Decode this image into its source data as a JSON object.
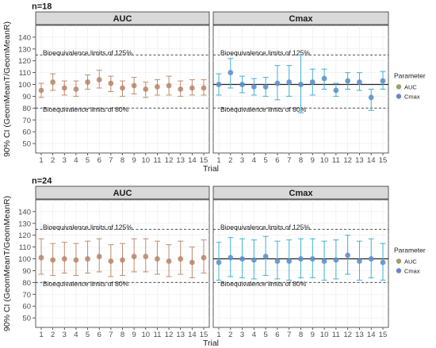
{
  "chart_data": [
    {
      "type": "scatter",
      "title": "n=18",
      "xlabel": "Trial",
      "ylabel": "90% CI (GeomMeanT/GeomMeanR)",
      "ylim": [
        42,
        150
      ],
      "yticks": [
        50,
        60,
        70,
        80,
        90,
        100,
        110,
        120,
        130,
        140
      ],
      "x": [
        1,
        2,
        3,
        4,
        5,
        6,
        7,
        8,
        9,
        10,
        11,
        12,
        13,
        14,
        15
      ],
      "reference_line": 100,
      "limits": [
        {
          "value": 125,
          "label": "Bioequivalence limits of 125%"
        },
        {
          "value": 80,
          "label": "Bioequivalence limits of 80%"
        }
      ],
      "legend": {
        "title": "Parameter",
        "position": "right"
      },
      "panels": [
        {
          "name": "AUC",
          "color": "#c08a6e",
          "points": [
            {
              "x": 1,
              "y": 95,
              "lo": 89,
              "hi": 101
            },
            {
              "x": 2,
              "y": 102,
              "lo": 95,
              "hi": 109
            },
            {
              "x": 3,
              "y": 97,
              "lo": 91,
              "hi": 103
            },
            {
              "x": 4,
              "y": 96,
              "lo": 90,
              "hi": 103
            },
            {
              "x": 5,
              "y": 102,
              "lo": 96,
              "hi": 108
            },
            {
              "x": 6,
              "y": 104,
              "lo": 97,
              "hi": 112
            },
            {
              "x": 7,
              "y": 101,
              "lo": 94,
              "hi": 107
            },
            {
              "x": 8,
              "y": 97,
              "lo": 90,
              "hi": 103
            },
            {
              "x": 9,
              "y": 99,
              "lo": 92,
              "hi": 106
            },
            {
              "x": 10,
              "y": 96,
              "lo": 89,
              "hi": 102
            },
            {
              "x": 11,
              "y": 98,
              "lo": 91,
              "hi": 104
            },
            {
              "x": 12,
              "y": 99,
              "lo": 91,
              "hi": 107
            },
            {
              "x": 13,
              "y": 96,
              "lo": 90,
              "hi": 103
            },
            {
              "x": 14,
              "y": 97,
              "lo": 91,
              "hi": 104
            },
            {
              "x": 15,
              "y": 97,
              "lo": 91,
              "hi": 104
            }
          ]
        },
        {
          "name": "Cmax",
          "color": "#3fb0d0",
          "points": [
            {
              "x": 1,
              "y": 100,
              "lo": 91,
              "hi": 109
            },
            {
              "x": 2,
              "y": 110,
              "lo": 97,
              "hi": 122
            },
            {
              "x": 3,
              "y": 100,
              "lo": 93,
              "hi": 107
            },
            {
              "x": 4,
              "y": 98,
              "lo": 91,
              "hi": 105
            },
            {
              "x": 5,
              "y": 98,
              "lo": 90,
              "hi": 106
            },
            {
              "x": 6,
              "y": 101,
              "lo": 87,
              "hi": 116
            },
            {
              "x": 7,
              "y": 102,
              "lo": 90,
              "hi": 116
            },
            {
              "x": 8,
              "y": 100,
              "lo": 76,
              "hi": 125
            },
            {
              "x": 9,
              "y": 102,
              "lo": 91,
              "hi": 113
            },
            {
              "x": 10,
              "y": 105,
              "lo": 96,
              "hi": 113
            },
            {
              "x": 11,
              "y": 95,
              "lo": 90,
              "hi": 101
            },
            {
              "x": 12,
              "y": 103,
              "lo": 96,
              "hi": 110
            },
            {
              "x": 13,
              "y": 102,
              "lo": 95,
              "hi": 110
            },
            {
              "x": 14,
              "y": 89,
              "lo": 78,
              "hi": 96
            },
            {
              "x": 15,
              "y": 103,
              "lo": 96,
              "hi": 111
            }
          ]
        }
      ]
    },
    {
      "type": "scatter",
      "title": "n=24",
      "xlabel": "Trial",
      "ylabel": "90% CI (GeomMeanT/GeomMeanR)",
      "ylim": [
        42,
        150
      ],
      "yticks": [
        50,
        60,
        70,
        80,
        90,
        100,
        110,
        120,
        130,
        140
      ],
      "x": [
        1,
        2,
        3,
        4,
        5,
        6,
        7,
        8,
        9,
        10,
        11,
        12,
        13,
        14,
        15
      ],
      "reference_line": 100,
      "limits": [
        {
          "value": 125,
          "label": "Bioequivalence limits of 125%"
        },
        {
          "value": 80,
          "label": "Bioequivalence limits of 80%"
        }
      ],
      "legend": {
        "title": "Parameter",
        "position": "right"
      },
      "panels": [
        {
          "name": "AUC",
          "color": "#c08a6e",
          "points": [
            {
              "x": 1,
              "y": 101,
              "lo": 87,
              "hi": 117
            },
            {
              "x": 2,
              "y": 99,
              "lo": 86,
              "hi": 113
            },
            {
              "x": 3,
              "y": 100,
              "lo": 88,
              "hi": 114
            },
            {
              "x": 4,
              "y": 99,
              "lo": 86,
              "hi": 113
            },
            {
              "x": 5,
              "y": 100,
              "lo": 88,
              "hi": 115
            },
            {
              "x": 6,
              "y": 102,
              "lo": 89,
              "hi": 117
            },
            {
              "x": 7,
              "y": 98,
              "lo": 85,
              "hi": 112
            },
            {
              "x": 8,
              "y": 99,
              "lo": 86,
              "hi": 113
            },
            {
              "x": 9,
              "y": 102,
              "lo": 89,
              "hi": 117
            },
            {
              "x": 10,
              "y": 102,
              "lo": 89,
              "hi": 117
            },
            {
              "x": 11,
              "y": 100,
              "lo": 87,
              "hi": 115
            },
            {
              "x": 12,
              "y": 98,
              "lo": 85,
              "hi": 112
            },
            {
              "x": 13,
              "y": 100,
              "lo": 87,
              "hi": 115
            },
            {
              "x": 14,
              "y": 97,
              "lo": 84,
              "hi": 110
            },
            {
              "x": 15,
              "y": 101,
              "lo": 88,
              "hi": 116
            }
          ]
        },
        {
          "name": "Cmax",
          "color": "#3fb0d0",
          "points": [
            {
              "x": 1,
              "y": 97,
              "lo": 82,
              "hi": 114
            },
            {
              "x": 2,
              "y": 101,
              "lo": 85,
              "hi": 118
            },
            {
              "x": 3,
              "y": 100,
              "lo": 84,
              "hi": 117
            },
            {
              "x": 4,
              "y": 99,
              "lo": 83,
              "hi": 116
            },
            {
              "x": 5,
              "y": 102,
              "lo": 86,
              "hi": 119
            },
            {
              "x": 6,
              "y": 98,
              "lo": 83,
              "hi": 115
            },
            {
              "x": 7,
              "y": 98,
              "lo": 82,
              "hi": 116
            },
            {
              "x": 8,
              "y": 100,
              "lo": 84,
              "hi": 117
            },
            {
              "x": 9,
              "y": 100,
              "lo": 84,
              "hi": 117
            },
            {
              "x": 10,
              "y": 98,
              "lo": 82,
              "hi": 115
            },
            {
              "x": 11,
              "y": 99,
              "lo": 83,
              "hi": 116
            },
            {
              "x": 12,
              "y": 103,
              "lo": 87,
              "hi": 120
            },
            {
              "x": 13,
              "y": 98,
              "lo": 82,
              "hi": 115
            },
            {
              "x": 14,
              "y": 100,
              "lo": 84,
              "hi": 117
            },
            {
              "x": 15,
              "y": 97,
              "lo": 82,
              "hi": 113
            }
          ]
        }
      ]
    }
  ]
}
